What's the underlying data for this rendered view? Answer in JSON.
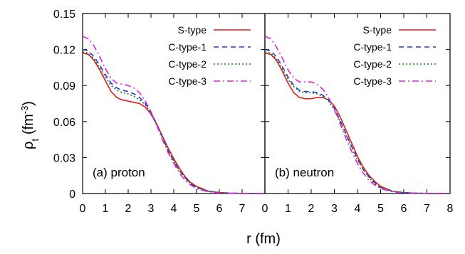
{
  "chart_data": {
    "type": "line",
    "xlabel": "r (fm)",
    "ylabel_main": "ρ",
    "ylabel_sub": "t",
    "ylabel_unit_pre": " (fm",
    "ylabel_unit_sup": "-3",
    "ylabel_unit_post": ")",
    "ylim": [
      0,
      0.15
    ],
    "y_ticks": [
      "0",
      "0.03",
      "0.06",
      "0.09",
      "0.12",
      "0.15"
    ],
    "y_tick_values": [
      0,
      0.03,
      0.06,
      0.09,
      0.12,
      0.15
    ],
    "grid": false,
    "legend_position": "top-right",
    "series_styles": [
      {
        "name": "S-type",
        "color": "#e41a1c",
        "dash": "solid"
      },
      {
        "name": "C-type-1",
        "color": "#1f3bd6",
        "dash": "dashed"
      },
      {
        "name": "C-type-2",
        "color": "#1a7a1a",
        "dash": "dotted"
      },
      {
        "name": "C-type-3",
        "color": "#e020e0",
        "dash": "dash-dot"
      }
    ],
    "panels": [
      {
        "label": "(a) proton",
        "xlim": [
          0,
          8
        ],
        "x_ticks": [
          "0",
          "1",
          "2",
          "3",
          "4",
          "5",
          "6",
          "7"
        ],
        "x_tick_values": [
          0,
          1,
          2,
          3,
          4,
          5,
          6,
          7
        ],
        "x": [
          0,
          0.25,
          0.5,
          0.75,
          1.0,
          1.25,
          1.5,
          1.75,
          2.0,
          2.25,
          2.5,
          2.75,
          3.0,
          3.25,
          3.5,
          3.75,
          4.0,
          4.25,
          4.5,
          4.75,
          5.0,
          5.5,
          6.0,
          6.5,
          7.0,
          7.5,
          8.0
        ],
        "series": [
          {
            "name": "S-type",
            "values": [
              0.117,
              0.116,
              0.111,
              0.103,
              0.094,
              0.085,
              0.08,
              0.078,
              0.077,
              0.076,
              0.075,
              0.072,
              0.066,
              0.058,
              0.048,
              0.038,
              0.029,
              0.021,
              0.014,
              0.009,
              0.006,
              0.002,
              0.0008,
              0.0003,
              0.0001,
              5e-05,
              2e-05
            ]
          },
          {
            "name": "C-type-1",
            "values": [
              0.12,
              0.119,
              0.114,
              0.107,
              0.099,
              0.092,
              0.088,
              0.086,
              0.085,
              0.083,
              0.08,
              0.075,
              0.068,
              0.058,
              0.047,
              0.036,
              0.027,
              0.019,
              0.013,
              0.008,
              0.005,
              0.002,
              0.0007,
              0.0003,
              0.0001,
              5e-05,
              2e-05
            ]
          },
          {
            "name": "C-type-2",
            "values": [
              0.118,
              0.117,
              0.112,
              0.105,
              0.097,
              0.09,
              0.086,
              0.084,
              0.083,
              0.081,
              0.078,
              0.074,
              0.067,
              0.057,
              0.047,
              0.036,
              0.027,
              0.019,
              0.013,
              0.008,
              0.005,
              0.002,
              0.0007,
              0.0003,
              0.0001,
              5e-05,
              2e-05
            ]
          },
          {
            "name": "C-type-3",
            "values": [
              0.131,
              0.129,
              0.123,
              0.114,
              0.104,
              0.096,
              0.092,
              0.091,
              0.09,
              0.088,
              0.084,
              0.077,
              0.068,
              0.057,
              0.045,
              0.034,
              0.025,
              0.017,
              0.011,
              0.007,
              0.004,
              0.0015,
              0.0005,
              0.0002,
              0.0001,
              4e-05,
              1e-05
            ]
          }
        ]
      },
      {
        "label": "(b) neutron",
        "xlim": [
          0,
          8
        ],
        "x_ticks": [
          "0",
          "1",
          "2",
          "3",
          "4",
          "5",
          "6",
          "7",
          "8"
        ],
        "x_tick_values": [
          0,
          1,
          2,
          3,
          4,
          5,
          6,
          7,
          8
        ],
        "x": [
          0,
          0.25,
          0.5,
          0.75,
          1.0,
          1.25,
          1.5,
          1.75,
          2.0,
          2.25,
          2.5,
          2.75,
          3.0,
          3.25,
          3.5,
          3.75,
          4.0,
          4.25,
          4.5,
          4.75,
          5.0,
          5.5,
          6.0,
          6.5,
          7.0,
          7.5,
          8.0
        ],
        "series": [
          {
            "name": "S-type",
            "values": [
              0.117,
              0.116,
              0.111,
              0.102,
              0.092,
              0.084,
              0.08,
              0.079,
              0.079,
              0.08,
              0.08,
              0.078,
              0.073,
              0.064,
              0.053,
              0.042,
              0.031,
              0.022,
              0.015,
              0.01,
              0.006,
              0.002,
              0.0008,
              0.0003,
              0.0001,
              5e-05,
              2e-05
            ]
          },
          {
            "name": "C-type-1",
            "values": [
              0.12,
              0.119,
              0.114,
              0.106,
              0.097,
              0.09,
              0.086,
              0.085,
              0.085,
              0.084,
              0.082,
              0.078,
              0.071,
              0.061,
              0.05,
              0.039,
              0.029,
              0.02,
              0.014,
              0.009,
              0.005,
              0.002,
              0.0007,
              0.0003,
              0.0001,
              5e-05,
              2e-05
            ]
          },
          {
            "name": "C-type-2",
            "values": [
              0.118,
              0.117,
              0.112,
              0.104,
              0.095,
              0.089,
              0.085,
              0.084,
              0.084,
              0.083,
              0.081,
              0.077,
              0.07,
              0.06,
              0.049,
              0.038,
              0.028,
              0.02,
              0.013,
              0.008,
              0.005,
              0.002,
              0.0007,
              0.0003,
              0.0001,
              5e-05,
              2e-05
            ]
          },
          {
            "name": "C-type-3",
            "values": [
              0.131,
              0.129,
              0.122,
              0.113,
              0.103,
              0.096,
              0.093,
              0.093,
              0.093,
              0.091,
              0.087,
              0.08,
              0.07,
              0.058,
              0.046,
              0.035,
              0.025,
              0.017,
              0.011,
              0.007,
              0.004,
              0.0015,
              0.0005,
              0.0002,
              0.0001,
              4e-05,
              1e-05
            ]
          }
        ]
      }
    ]
  }
}
